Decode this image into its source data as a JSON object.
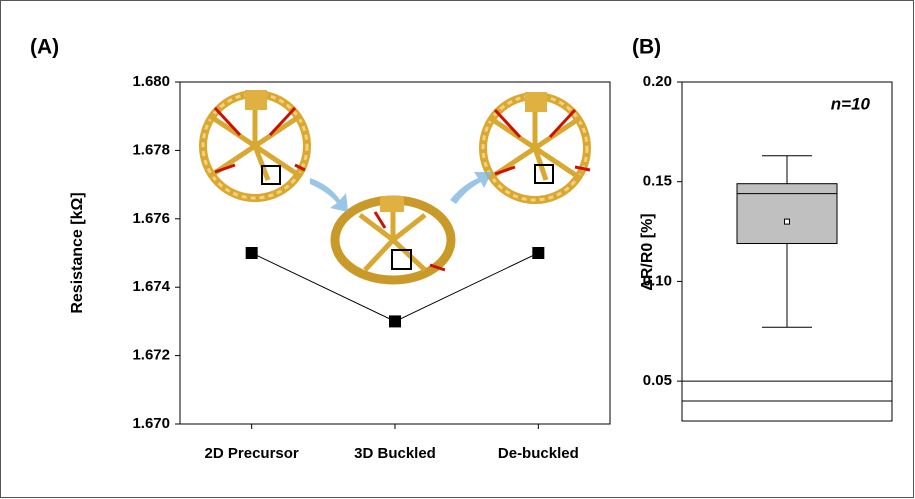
{
  "chart_data": [
    {
      "type": "line",
      "panel_label": "(A)",
      "ylabel": "Resistance [kΩ]",
      "categories": [
        "2D Precursor",
        "3D Buckled",
        "De-buckled"
      ],
      "values": [
        1.675,
        1.673,
        1.675
      ],
      "color": "#000000",
      "ylim": [
        1.67,
        1.68
      ],
      "yticks": [
        {
          "value": 1.67,
          "label": "1.670"
        },
        {
          "value": 1.672,
          "label": "1.672"
        },
        {
          "value": 1.674,
          "label": "1.674"
        },
        {
          "value": 1.676,
          "label": "1.676"
        },
        {
          "value": 1.678,
          "label": "1.678"
        },
        {
          "value": 1.68,
          "label": "1.680"
        }
      ]
    },
    {
      "type": "box",
      "panel_label": "(B)",
      "ylabel": "ΔR/R0 [%]",
      "annotation": "n=10",
      "whisker_low": 0.077,
      "q1": 0.119,
      "median": 0.144,
      "q3": 0.149,
      "whisker_high": 0.163,
      "mean": 0.13,
      "reference_lines": [
        0.05,
        0.04
      ],
      "color": "#c0c0c0",
      "ylim": [
        0.03,
        0.2
      ],
      "yticks": [
        0.05,
        {
          "value": 0.1,
          "label": "0.10"
        },
        0.15,
        {
          "value": 0.2,
          "label": "0.20"
        }
      ]
    }
  ]
}
